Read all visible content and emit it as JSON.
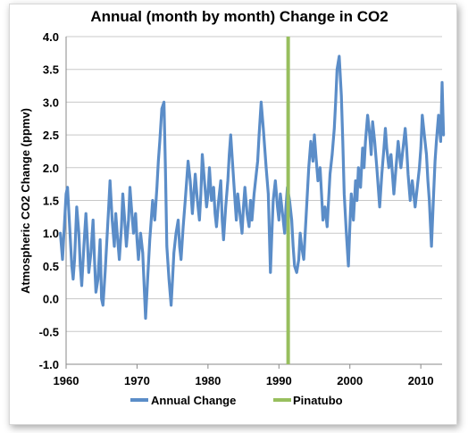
{
  "chart_data": {
    "type": "line",
    "title": "Annual (month by month) Change in CO2",
    "xlabel": "",
    "ylabel": "Atmospheric CO2 Change (ppmv)",
    "xlim": [
      1960,
      2013
    ],
    "ylim": [
      -1.0,
      4.0
    ],
    "x_ticks": [
      1960,
      1970,
      1980,
      1990,
      2000,
      2010
    ],
    "x_tick_labels": [
      "1960",
      "1970",
      "1980",
      "1990",
      "2000",
      "2010"
    ],
    "y_ticks": [
      -1.0,
      -0.5,
      0.0,
      0.5,
      1.0,
      1.5,
      2.0,
      2.5,
      3.0,
      3.5,
      4.0
    ],
    "y_tick_labels": [
      "-1.0",
      "-0.5",
      "0.0",
      "0.5",
      "1.0",
      "1.5",
      "2.0",
      "2.5",
      "3.0",
      "3.5",
      "4.0"
    ],
    "grid": "horizontal",
    "legend_position": "bottom",
    "series": [
      {
        "name": "Annual Change",
        "color": "#5b8dc8",
        "points": [
          [
            1959.2,
            1.0
          ],
          [
            1959.5,
            0.6
          ],
          [
            1959.8,
            1.2
          ],
          [
            1960.0,
            1.6
          ],
          [
            1960.2,
            1.7
          ],
          [
            1960.5,
            1.1
          ],
          [
            1960.8,
            0.5
          ],
          [
            1961.0,
            0.3
          ],
          [
            1961.2,
            0.6
          ],
          [
            1961.5,
            1.4
          ],
          [
            1961.8,
            1.0
          ],
          [
            1962.0,
            0.5
          ],
          [
            1962.2,
            0.2
          ],
          [
            1962.5,
            0.8
          ],
          [
            1962.8,
            1.3
          ],
          [
            1963.0,
            0.9
          ],
          [
            1963.2,
            0.4
          ],
          [
            1963.5,
            0.7
          ],
          [
            1963.8,
            1.2
          ],
          [
            1964.0,
            0.6
          ],
          [
            1964.2,
            0.1
          ],
          [
            1964.5,
            0.3
          ],
          [
            1964.8,
            0.9
          ],
          [
            1965.0,
            0.0
          ],
          [
            1965.2,
            -0.1
          ],
          [
            1965.5,
            0.4
          ],
          [
            1965.8,
            1.0
          ],
          [
            1966.0,
            1.4
          ],
          [
            1966.2,
            1.8
          ],
          [
            1966.5,
            1.2
          ],
          [
            1966.8,
            0.8
          ],
          [
            1967.0,
            1.3
          ],
          [
            1967.2,
            1.0
          ],
          [
            1967.5,
            0.6
          ],
          [
            1967.8,
            1.1
          ],
          [
            1968.0,
            1.6
          ],
          [
            1968.2,
            1.3
          ],
          [
            1968.5,
            0.8
          ],
          [
            1968.8,
            1.2
          ],
          [
            1969.0,
            1.7
          ],
          [
            1969.2,
            1.4
          ],
          [
            1969.5,
            1.0
          ],
          [
            1969.8,
            1.3
          ],
          [
            1970.0,
            0.9
          ],
          [
            1970.2,
            0.6
          ],
          [
            1970.5,
            1.0
          ],
          [
            1970.8,
            0.7
          ],
          [
            1971.0,
            0.2
          ],
          [
            1971.2,
            -0.3
          ],
          [
            1971.5,
            0.3
          ],
          [
            1971.8,
            0.9
          ],
          [
            1972.0,
            1.2
          ],
          [
            1972.2,
            1.5
          ],
          [
            1972.5,
            1.2
          ],
          [
            1972.8,
            1.7
          ],
          [
            1973.0,
            2.1
          ],
          [
            1973.2,
            2.4
          ],
          [
            1973.5,
            2.9
          ],
          [
            1973.8,
            3.0
          ],
          [
            1974.0,
            2.0
          ],
          [
            1974.2,
            0.8
          ],
          [
            1974.5,
            0.3
          ],
          [
            1974.8,
            -0.1
          ],
          [
            1975.0,
            0.3
          ],
          [
            1975.2,
            0.7
          ],
          [
            1975.5,
            1.0
          ],
          [
            1975.8,
            1.2
          ],
          [
            1976.0,
            0.8
          ],
          [
            1976.2,
            0.6
          ],
          [
            1976.5,
            1.1
          ],
          [
            1976.8,
            1.5
          ],
          [
            1977.0,
            1.8
          ],
          [
            1977.2,
            2.1
          ],
          [
            1977.5,
            1.8
          ],
          [
            1977.8,
            1.3
          ],
          [
            1978.0,
            1.6
          ],
          [
            1978.2,
            1.9
          ],
          [
            1978.5,
            1.5
          ],
          [
            1978.8,
            1.2
          ],
          [
            1979.0,
            1.6
          ],
          [
            1979.2,
            2.2
          ],
          [
            1979.5,
            1.8
          ],
          [
            1979.8,
            1.4
          ],
          [
            1980.0,
            1.6
          ],
          [
            1980.2,
            2.0
          ],
          [
            1980.5,
            1.5
          ],
          [
            1980.8,
            1.7
          ],
          [
            1981.0,
            1.3
          ],
          [
            1981.2,
            1.1
          ],
          [
            1981.5,
            1.5
          ],
          [
            1981.8,
            1.8
          ],
          [
            1982.0,
            1.2
          ],
          [
            1982.2,
            0.9
          ],
          [
            1982.5,
            1.4
          ],
          [
            1982.8,
            1.8
          ],
          [
            1983.0,
            2.2
          ],
          [
            1983.2,
            2.5
          ],
          [
            1983.5,
            2.0
          ],
          [
            1983.8,
            1.5
          ],
          [
            1984.0,
            1.2
          ],
          [
            1984.2,
            1.6
          ],
          [
            1984.5,
            1.3
          ],
          [
            1984.8,
            1.0
          ],
          [
            1985.0,
            1.4
          ],
          [
            1985.2,
            1.7
          ],
          [
            1985.5,
            1.3
          ],
          [
            1985.8,
            1.1
          ],
          [
            1986.0,
            1.5
          ],
          [
            1986.2,
            1.2
          ],
          [
            1986.5,
            1.6
          ],
          [
            1986.8,
            1.9
          ],
          [
            1987.0,
            2.1
          ],
          [
            1987.2,
            2.5
          ],
          [
            1987.5,
            3.0
          ],
          [
            1987.8,
            2.6
          ],
          [
            1988.0,
            2.3
          ],
          [
            1988.2,
            2.0
          ],
          [
            1988.5,
            1.6
          ],
          [
            1988.8,
            0.4
          ],
          [
            1989.0,
            1.0
          ],
          [
            1989.2,
            1.5
          ],
          [
            1989.5,
            1.8
          ],
          [
            1989.8,
            1.4
          ],
          [
            1990.0,
            1.2
          ],
          [
            1990.2,
            1.6
          ],
          [
            1990.5,
            1.3
          ],
          [
            1990.8,
            1.0
          ],
          [
            1991.0,
            1.4
          ],
          [
            1991.2,
            1.7
          ],
          [
            1991.5,
            1.5
          ],
          [
            1991.8,
            1.2
          ],
          [
            1992.0,
            0.8
          ],
          [
            1992.2,
            0.5
          ],
          [
            1992.5,
            0.4
          ],
          [
            1992.8,
            0.6
          ],
          [
            1993.0,
            1.0
          ],
          [
            1993.2,
            0.8
          ],
          [
            1993.5,
            0.6
          ],
          [
            1993.8,
            1.2
          ],
          [
            1994.0,
            1.6
          ],
          [
            1994.2,
            2.0
          ],
          [
            1994.5,
            2.4
          ],
          [
            1994.8,
            2.1
          ],
          [
            1995.0,
            2.5
          ],
          [
            1995.2,
            2.2
          ],
          [
            1995.5,
            1.8
          ],
          [
            1995.8,
            2.0
          ],
          [
            1996.0,
            1.6
          ],
          [
            1996.2,
            1.2
          ],
          [
            1996.5,
            1.4
          ],
          [
            1996.8,
            1.1
          ],
          [
            1997.0,
            1.5
          ],
          [
            1997.2,
            1.9
          ],
          [
            1997.5,
            2.2
          ],
          [
            1997.8,
            2.6
          ],
          [
            1998.0,
            3.0
          ],
          [
            1998.2,
            3.5
          ],
          [
            1998.5,
            3.7
          ],
          [
            1998.8,
            3.1
          ],
          [
            1999.0,
            2.4
          ],
          [
            1999.2,
            1.6
          ],
          [
            1999.5,
            1.0
          ],
          [
            1999.8,
            0.5
          ],
          [
            2000.0,
            1.1
          ],
          [
            2000.2,
            1.6
          ],
          [
            2000.5,
            1.2
          ],
          [
            2000.8,
            1.8
          ],
          [
            2001.0,
            1.5
          ],
          [
            2001.2,
            2.0
          ],
          [
            2001.5,
            1.7
          ],
          [
            2001.8,
            2.3
          ],
          [
            2002.0,
            2.0
          ],
          [
            2002.2,
            2.4
          ],
          [
            2002.5,
            2.8
          ],
          [
            2002.8,
            2.5
          ],
          [
            2003.0,
            2.2
          ],
          [
            2003.2,
            2.7
          ],
          [
            2003.5,
            2.4
          ],
          [
            2003.8,
            2.0
          ],
          [
            2004.0,
            1.7
          ],
          [
            2004.2,
            1.4
          ],
          [
            2004.5,
            1.9
          ],
          [
            2004.8,
            2.3
          ],
          [
            2005.0,
            2.6
          ],
          [
            2005.2,
            2.3
          ],
          [
            2005.5,
            2.0
          ],
          [
            2005.8,
            2.2
          ],
          [
            2006.0,
            1.9
          ],
          [
            2006.2,
            1.6
          ],
          [
            2006.5,
            2.0
          ],
          [
            2006.8,
            2.4
          ],
          [
            2007.0,
            2.2
          ],
          [
            2007.2,
            2.0
          ],
          [
            2007.5,
            2.3
          ],
          [
            2007.8,
            2.6
          ],
          [
            2008.0,
            2.3
          ],
          [
            2008.2,
            1.9
          ],
          [
            2008.5,
            1.5
          ],
          [
            2008.8,
            1.8
          ],
          [
            2009.0,
            1.6
          ],
          [
            2009.2,
            1.4
          ],
          [
            2009.5,
            1.7
          ],
          [
            2009.8,
            2.0
          ],
          [
            2010.0,
            2.3
          ],
          [
            2010.2,
            2.8
          ],
          [
            2010.5,
            2.5
          ],
          [
            2010.8,
            2.2
          ],
          [
            2011.0,
            1.8
          ],
          [
            2011.2,
            1.5
          ],
          [
            2011.5,
            0.8
          ],
          [
            2011.8,
            1.6
          ],
          [
            2012.0,
            2.1
          ],
          [
            2012.2,
            2.4
          ],
          [
            2012.5,
            2.8
          ],
          [
            2012.8,
            2.4
          ],
          [
            2013.0,
            3.3
          ],
          [
            2013.2,
            2.5
          ]
        ]
      },
      {
        "name": "Pinatubo",
        "color": "#98bf5e",
        "x": 1991.3
      }
    ]
  }
}
